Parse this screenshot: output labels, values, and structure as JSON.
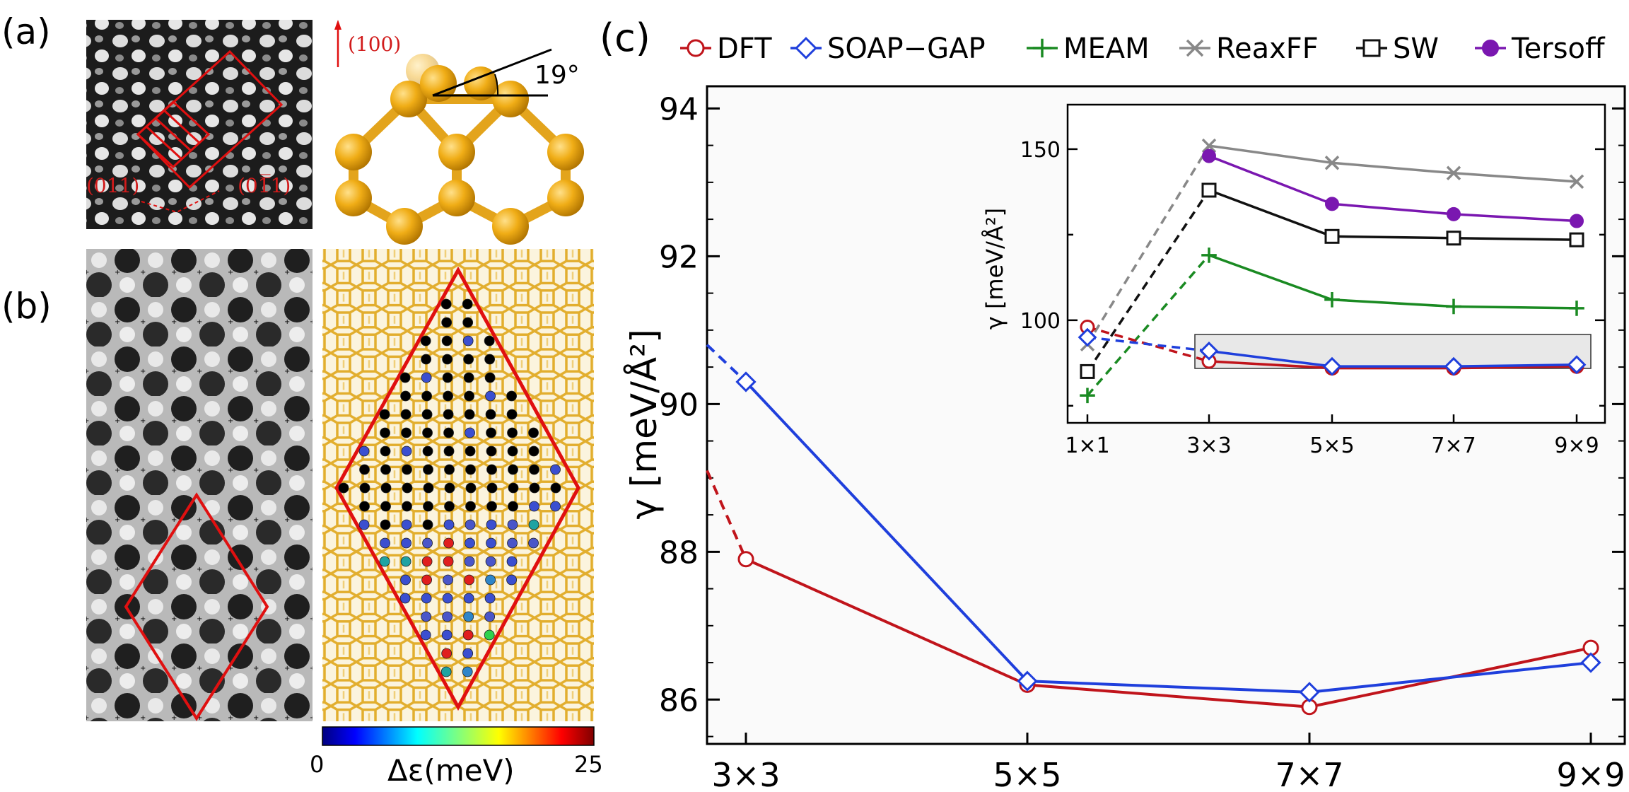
{
  "panels": {
    "a": {
      "label": "(a)",
      "direction": "(100)",
      "dir_left": "(011)",
      "dir_right": "(01̅̅1)",
      "angle": "19°"
    },
    "b": {
      "label": "(b)",
      "colorbar": {
        "min": "0",
        "max": "25",
        "label": "Δε(meV)"
      }
    },
    "c": {
      "label": "(c)"
    }
  },
  "legend": [
    {
      "name": "DFT",
      "color": "#c0141b",
      "marker": "circle-open"
    },
    {
      "name": "SOAP−GAP",
      "color": "#1f3fdc",
      "marker": "diamond-open"
    },
    {
      "name": "MEAM",
      "color": "#1a8a22",
      "marker": "plus"
    },
    {
      "name": "ReaxFF",
      "color": "#888888",
      "marker": "x"
    },
    {
      "name": "SW",
      "color": "#111111",
      "marker": "square-open"
    },
    {
      "name": "Tersoff",
      "color": "#7a17b0",
      "marker": "circle-filled"
    }
  ],
  "chart_data": [
    {
      "type": "line",
      "id": "main",
      "categories": [
        "3×3",
        "5×5",
        "7×7",
        "9×9"
      ],
      "ylabel": "γ [meV/Å²]",
      "ylim": [
        85.4,
        94.3
      ],
      "yticks": [
        86,
        88,
        90,
        92,
        94
      ],
      "series": [
        {
          "name": "DFT",
          "values": [
            87.9,
            86.2,
            85.9,
            86.7
          ],
          "lead_in_from": 89.1
        },
        {
          "name": "SOAP−GAP",
          "values": [
            90.3,
            86.25,
            86.1,
            86.5
          ],
          "lead_in_from": 90.8
        }
      ]
    },
    {
      "type": "line",
      "id": "inset",
      "categories": [
        "1×1",
        "3×3",
        "5×5",
        "7×7",
        "9×9"
      ],
      "ylabel": "γ [meV/Å²]",
      "ylim": [
        70,
        163
      ],
      "yticks": [
        100,
        150
      ],
      "series": [
        {
          "name": "DFT",
          "values": [
            98,
            88,
            86,
            86,
            86.5
          ]
        },
        {
          "name": "SOAP−GAP",
          "values": [
            95,
            91,
            86.5,
            86.5,
            87
          ]
        },
        {
          "name": "MEAM",
          "values": [
            78,
            119,
            106,
            104,
            103.5
          ]
        },
        {
          "name": "ReaxFF",
          "values": [
            93,
            151,
            146,
            143,
            140.5
          ]
        },
        {
          "name": "SW",
          "values": [
            85,
            138,
            124.5,
            124,
            123.5
          ]
        },
        {
          "name": "Tersoff",
          "values": [
            null,
            148,
            134,
            131,
            129
          ]
        }
      ]
    }
  ]
}
